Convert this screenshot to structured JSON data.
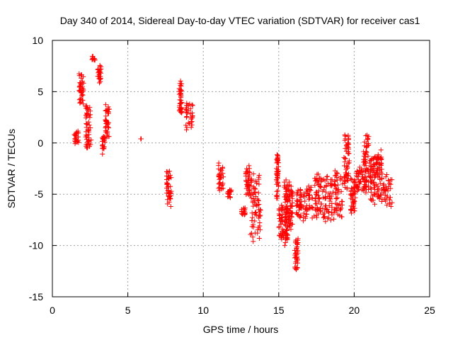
{
  "chart_data": {
    "type": "scatter",
    "title": "Day 340 of 2014, Sidereal Day-to-day VTEC variation (SDTVAR) for receiver cas1",
    "xlabel": "GPS time / hours",
    "ylabel": "SDTVAR / TECUs",
    "xlim": [
      0,
      25
    ],
    "ylim": [
      -15,
      10
    ],
    "xticks": [
      "0",
      "5",
      "10",
      "15",
      "20",
      "25"
    ],
    "yticks": [
      "10",
      "5",
      "0",
      "-5",
      "-10",
      "-15"
    ],
    "xtick_values": [
      0,
      5,
      10,
      15,
      20,
      25
    ],
    "ytick_values": [
      10,
      5,
      0,
      -5,
      -10,
      -15
    ],
    "grid": true,
    "marker": "+",
    "color": "#ff0000",
    "segments": [
      {
        "x": [
          1.45,
          1.75
        ],
        "y": [
          -0.3,
          1.5
        ]
      },
      {
        "x": [
          1.75,
          2.1
        ],
        "y": [
          3.5,
          7.2
        ]
      },
      {
        "x": [
          2.2,
          2.6
        ],
        "y": [
          -0.9,
          4.0
        ]
      },
      {
        "x": [
          2.6,
          2.85
        ],
        "y": [
          7.9,
          8.5
        ]
      },
      {
        "x": [
          3.0,
          3.25
        ],
        "y": [
          5.8,
          7.8
        ]
      },
      {
        "x": [
          3.3,
          3.5
        ],
        "y": [
          -1.2,
          0.8
        ]
      },
      {
        "x": [
          3.5,
          3.8
        ],
        "y": [
          0.3,
          3.8
        ]
      },
      {
        "x": [
          5.85,
          5.9
        ],
        "y": [
          0.4,
          0.4
        ]
      },
      {
        "x": [
          7.55,
          7.9
        ],
        "y": [
          -6.3,
          -2.3
        ]
      },
      {
        "x": [
          8.4,
          8.6
        ],
        "y": [
          2.5,
          6.2
        ]
      },
      {
        "x": [
          8.8,
          9.35
        ],
        "y": [
          1.2,
          4.2
        ]
      },
      {
        "x": [
          11.0,
          11.35
        ],
        "y": [
          -5.0,
          -1.8
        ]
      },
      {
        "x": [
          11.6,
          11.9
        ],
        "y": [
          -5.5,
          -4.5
        ]
      },
      {
        "x": [
          12.5,
          12.8
        ],
        "y": [
          -7.2,
          -6.0
        ]
      },
      {
        "x": [
          12.8,
          13.1
        ],
        "y": [
          -5.5,
          -2.0
        ]
      },
      {
        "x": [
          13.1,
          13.85
        ],
        "y": [
          -10.0,
          -2.8
        ]
      },
      {
        "x": [
          14.85,
          15.0
        ],
        "y": [
          -5.5,
          -1.0
        ]
      },
      {
        "x": [
          15.0,
          15.35
        ],
        "y": [
          -9.6,
          -5.8
        ]
      },
      {
        "x": [
          15.35,
          15.65
        ],
        "y": [
          -10.5,
          -3.5
        ]
      },
      {
        "x": [
          15.6,
          15.95
        ],
        "y": [
          -9.0,
          -3.7
        ]
      },
      {
        "x": [
          16.05,
          16.3
        ],
        "y": [
          -12.7,
          -9.2
        ]
      },
      {
        "x": [
          16.15,
          16.55
        ],
        "y": [
          -8.0,
          -4.3
        ]
      },
      {
        "x": [
          16.6,
          17.3
        ],
        "y": [
          -8.0,
          -4.0
        ]
      },
      {
        "x": [
          17.3,
          17.9
        ],
        "y": [
          -7.5,
          -2.8
        ]
      },
      {
        "x": [
          17.9,
          18.6
        ],
        "y": [
          -8.0,
          -2.8
        ]
      },
      {
        "x": [
          18.6,
          19.3
        ],
        "y": [
          -7.5,
          -2.5
        ]
      },
      {
        "x": [
          19.3,
          19.7
        ],
        "y": [
          -4.5,
          1.2
        ]
      },
      {
        "x": [
          19.75,
          20.1
        ],
        "y": [
          -7.0,
          -2.8
        ]
      },
      {
        "x": [
          20.1,
          20.6
        ],
        "y": [
          -4.8,
          -2.0
        ]
      },
      {
        "x": [
          20.6,
          21.0
        ],
        "y": [
          -5.2,
          1.3
        ]
      },
      {
        "x": [
          21.0,
          21.45
        ],
        "y": [
          -6.3,
          -1.0
        ]
      },
      {
        "x": [
          21.45,
          21.9
        ],
        "y": [
          -6.0,
          -0.5
        ]
      },
      {
        "x": [
          21.9,
          22.6
        ],
        "y": [
          -6.2,
          -3.0
        ]
      }
    ]
  }
}
